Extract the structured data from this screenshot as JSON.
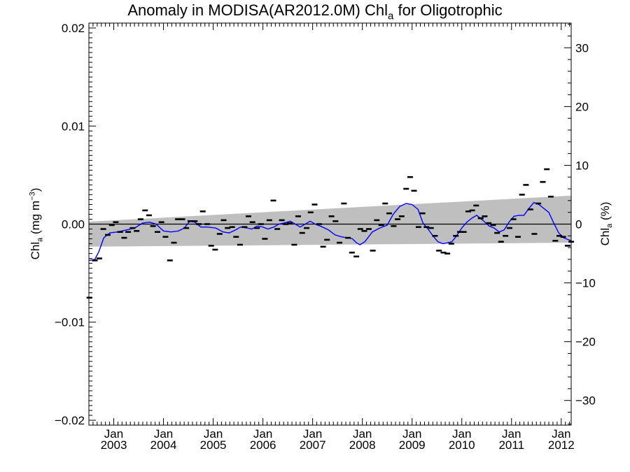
{
  "title": {
    "main": "Anomaly in MODISA(AR2012.0M) Chl",
    "sub": "a",
    "tail": " for Oligotrophic"
  },
  "ylabel_left": {
    "main": "Chl",
    "sub": "a",
    "mid": " (mg m",
    "sup": "−3",
    "end": ")"
  },
  "ylabel_right": {
    "main": "Chl",
    "sub": "a",
    "end": " (%)"
  },
  "colors": {
    "band": "#bfbfbf",
    "line": "#0000ff",
    "points": "#000000",
    "zero": "#000000"
  },
  "chart_data": {
    "type": "line",
    "xlim": [
      2002.5,
      2012.2
    ],
    "ylim_left": [
      -0.0205,
      0.0205
    ],
    "ylim_right": [
      -34.2,
      34.2
    ],
    "yticks_left": [
      {
        "v": -0.02,
        "label": "−0.02"
      },
      {
        "v": -0.01,
        "label": "−0.01"
      },
      {
        "v": 0.0,
        "label": "0.00"
      },
      {
        "v": 0.01,
        "label": "0.01"
      },
      {
        "v": 0.02,
        "label": "0.02"
      }
    ],
    "yticks_right": [
      {
        "v": -30,
        "label": "−30"
      },
      {
        "v": -20,
        "label": "−20"
      },
      {
        "v": -10,
        "label": "−10"
      },
      {
        "v": 0,
        "label": "0"
      },
      {
        "v": 10,
        "label": "10"
      },
      {
        "v": 20,
        "label": "20"
      },
      {
        "v": 30,
        "label": "30"
      }
    ],
    "xticks": [
      {
        "x": 2003.0,
        "month": "Jan",
        "year": "2003"
      },
      {
        "x": 2004.0,
        "month": "Jan",
        "year": "2004"
      },
      {
        "x": 2005.0,
        "month": "Jan",
        "year": "2005"
      },
      {
        "x": 2006.0,
        "month": "Jan",
        "year": "2006"
      },
      {
        "x": 2007.0,
        "month": "Jan",
        "year": "2007"
      },
      {
        "x": 2008.0,
        "month": "Jan",
        "year": "2008"
      },
      {
        "x": 2009.0,
        "month": "Jan",
        "year": "2009"
      },
      {
        "x": 2010.0,
        "month": "Jan",
        "year": "2010"
      },
      {
        "x": 2011.0,
        "month": "Jan",
        "year": "2011"
      },
      {
        "x": 2012.0,
        "month": "Jan",
        "year": "2012"
      }
    ],
    "band": {
      "upper": [
        [
          2002.5,
          0.00025
        ],
        [
          2012.2,
          0.0029
        ]
      ],
      "lower": [
        [
          2002.5,
          -0.0023
        ],
        [
          2012.2,
          -0.0019
        ]
      ]
    },
    "smooth_line": [
      [
        2002.5,
        -0.0037
      ],
      [
        2002.62,
        -0.0036
      ],
      [
        2002.7,
        -0.0028
      ],
      [
        2002.8,
        -0.0014
      ],
      [
        2002.92,
        -0.0009
      ],
      [
        2003.08,
        -0.0008
      ],
      [
        2003.25,
        -0.0006
      ],
      [
        2003.42,
        -0.0004
      ],
      [
        2003.58,
        0.0001
      ],
      [
        2003.72,
        0.0002
      ],
      [
        2003.85,
        0.0
      ],
      [
        2004.0,
        -0.0007
      ],
      [
        2004.15,
        -0.0008
      ],
      [
        2004.3,
        -0.0007
      ],
      [
        2004.42,
        -0.0004
      ],
      [
        2004.53,
        0.0003
      ],
      [
        2004.63,
        0.0002
      ],
      [
        2004.75,
        -0.0003
      ],
      [
        2004.88,
        -0.0003
      ],
      [
        2005.05,
        -0.0004
      ],
      [
        2005.2,
        -0.0008
      ],
      [
        2005.32,
        -0.0009
      ],
      [
        2005.45,
        -0.0006
      ],
      [
        2005.55,
        -0.0003
      ],
      [
        2005.68,
        -0.0004
      ],
      [
        2005.78,
        -0.0005
      ],
      [
        2005.88,
        -0.0002
      ],
      [
        2006.0,
        -0.0003
      ],
      [
        2006.1,
        -0.0005
      ],
      [
        2006.22,
        -0.0003
      ],
      [
        2006.32,
        0.0
      ],
      [
        2006.42,
        0.0001
      ],
      [
        2006.55,
        0.0003
      ],
      [
        2006.65,
        0.0
      ],
      [
        2006.75,
        -0.0003
      ],
      [
        2006.85,
        0.0
      ],
      [
        2006.95,
        0.0003
      ],
      [
        2007.05,
        0.0
      ],
      [
        2007.2,
        -0.0003
      ],
      [
        2007.32,
        -0.0006
      ],
      [
        2007.45,
        -0.0011
      ],
      [
        2007.58,
        -0.0013
      ],
      [
        2007.7,
        -0.0014
      ],
      [
        2007.8,
        -0.0015
      ],
      [
        2007.88,
        -0.0019
      ],
      [
        2007.95,
        -0.0021
      ],
      [
        2008.05,
        -0.0018
      ],
      [
        2008.2,
        -0.0008
      ],
      [
        2008.35,
        -0.0004
      ],
      [
        2008.5,
        -0.0001
      ],
      [
        2008.62,
        0.001
      ],
      [
        2008.75,
        0.0018
      ],
      [
        2008.88,
        0.0021
      ],
      [
        2009.0,
        0.002
      ],
      [
        2009.12,
        0.0015
      ],
      [
        2009.22,
        0.0001
      ],
      [
        2009.32,
        -0.0005
      ],
      [
        2009.42,
        -0.0012
      ],
      [
        2009.52,
        -0.0018
      ],
      [
        2009.62,
        -0.002
      ],
      [
        2009.72,
        -0.0019
      ],
      [
        2009.8,
        -0.0018
      ],
      [
        2009.88,
        -0.0013
      ],
      [
        2010.0,
        -0.0004
      ],
      [
        2010.1,
        0.0002
      ],
      [
        2010.2,
        0.0006
      ],
      [
        2010.3,
        0.0009
      ],
      [
        2010.42,
        0.0004
      ],
      [
        2010.55,
        -0.0002
      ],
      [
        2010.65,
        -0.0004
      ],
      [
        2010.75,
        -0.0008
      ],
      [
        2010.85,
        -0.0006
      ],
      [
        2010.95,
        0.0002
      ],
      [
        2011.05,
        0.0008
      ],
      [
        2011.15,
        0.0009
      ],
      [
        2011.25,
        0.0009
      ],
      [
        2011.35,
        0.0016
      ],
      [
        2011.45,
        0.0022
      ],
      [
        2011.55,
        0.002
      ],
      [
        2011.65,
        0.0016
      ],
      [
        2011.75,
        0.0012
      ],
      [
        2011.85,
        0.0001
      ],
      [
        2011.95,
        -0.0009
      ],
      [
        2012.05,
        -0.0014
      ],
      [
        2012.15,
        -0.0016
      ],
      [
        2012.2,
        -0.0017
      ]
    ],
    "monthly_points": [
      [
        2002.51,
        -0.0075
      ],
      [
        2002.62,
        -0.0037
      ],
      [
        2002.71,
        -0.0035
      ],
      [
        2002.79,
        -0.0005
      ],
      [
        2002.88,
        -0.0011
      ],
      [
        2002.96,
        -0.0001
      ],
      [
        2003.04,
        0.0002
      ],
      [
        2003.13,
        -0.0008
      ],
      [
        2003.21,
        -0.0014
      ],
      [
        2003.29,
        -0.0008
      ],
      [
        2003.38,
        -0.0004
      ],
      [
        2003.46,
        -0.0007
      ],
      [
        2003.54,
        0.0005
      ],
      [
        2003.63,
        0.0014
      ],
      [
        2003.71,
        0.0009
      ],
      [
        2003.79,
        -0.0002
      ],
      [
        2003.88,
        -0.0008
      ],
      [
        2003.96,
        0.0002
      ],
      [
        2004.04,
        -0.0013
      ],
      [
        2004.13,
        -0.0037
      ],
      [
        2004.21,
        -0.0019
      ],
      [
        2004.29,
        0.0005
      ],
      [
        2004.38,
        0.0005
      ],
      [
        2004.46,
        -0.0004
      ],
      [
        2004.54,
        0.0003
      ],
      [
        2004.63,
        0.0003
      ],
      [
        2004.71,
        0.0
      ],
      [
        2004.79,
        0.0013
      ],
      [
        2004.88,
        -0.0
      ],
      [
        2004.96,
        -0.0022
      ],
      [
        2005.04,
        -0.0026
      ],
      [
        2005.13,
        -0.001
      ],
      [
        2005.21,
        0.0004
      ],
      [
        2005.29,
        -0.0004
      ],
      [
        2005.38,
        -0.0003
      ],
      [
        2005.46,
        -0.0013
      ],
      [
        2005.54,
        -0.0021
      ],
      [
        2005.63,
        -0.0003
      ],
      [
        2005.71,
        0.0008
      ],
      [
        2005.79,
        0.0002
      ],
      [
        2005.88,
        -0.0004
      ],
      [
        2005.96,
        0.0
      ],
      [
        2006.04,
        -0.0015
      ],
      [
        2006.13,
        0.0004
      ],
      [
        2006.21,
        0.0024
      ],
      [
        2006.29,
        -0.0005
      ],
      [
        2006.38,
        0.0004
      ],
      [
        2006.46,
        0.0
      ],
      [
        2006.54,
        0.0001
      ],
      [
        2006.63,
        -0.0021
      ],
      [
        2006.71,
        0.0008
      ],
      [
        2006.79,
        -0.0009
      ],
      [
        2006.88,
        -0.0004
      ],
      [
        2006.96,
        0.0012
      ],
      [
        2007.04,
        0.002
      ],
      [
        2007.13,
        0.0
      ],
      [
        2007.21,
        -0.0023
      ],
      [
        2007.29,
        -0.0016
      ],
      [
        2007.38,
        0.0008
      ],
      [
        2007.46,
        0.0003
      ],
      [
        2007.54,
        -0.0019
      ],
      [
        2007.63,
        0.0021
      ],
      [
        2007.71,
        -0.0014
      ],
      [
        2007.79,
        -0.0029
      ],
      [
        2007.88,
        -0.0033
      ],
      [
        2007.96,
        -0.0005
      ],
      [
        2008.04,
        -0.0007
      ],
      [
        2008.13,
        -0.0005
      ],
      [
        2008.21,
        -0.0027
      ],
      [
        2008.29,
        0.0004
      ],
      [
        2008.38,
        -0.0001
      ],
      [
        2008.46,
        0.0021
      ],
      [
        2008.54,
        0.0011
      ],
      [
        2008.63,
        -0.0002
      ],
      [
        2008.71,
        0.0005
      ],
      [
        2008.79,
        0.0008
      ],
      [
        2008.88,
        0.0036
      ],
      [
        2008.96,
        0.0048
      ],
      [
        2009.04,
        0.0034
      ],
      [
        2009.13,
        -0.0003
      ],
      [
        2009.21,
        0.0011
      ],
      [
        2009.29,
        -0.0003
      ],
      [
        2009.38,
        -0.0004
      ],
      [
        2009.46,
        -0.0012
      ],
      [
        2009.54,
        -0.0027
      ],
      [
        2009.63,
        -0.0029
      ],
      [
        2009.71,
        -0.003
      ],
      [
        2009.79,
        -0.002
      ],
      [
        2009.88,
        -0.0012
      ],
      [
        2009.96,
        -0.0008
      ],
      [
        2010.04,
        -0.0008
      ],
      [
        2010.13,
        0.0013
      ],
      [
        2010.21,
        0.0014
      ],
      [
        2010.29,
        0.0019
      ],
      [
        2010.38,
        0.0006
      ],
      [
        2010.46,
        0.0008
      ],
      [
        2010.54,
        0.0001
      ],
      [
        2010.63,
        -0.0001
      ],
      [
        2010.71,
        -0.0009
      ],
      [
        2010.79,
        -0.0018
      ],
      [
        2010.88,
        -0.0012
      ],
      [
        2010.96,
        -0.0004
      ],
      [
        2011.04,
        0.0005
      ],
      [
        2011.13,
        -0.0013
      ],
      [
        2011.21,
        0.003
      ],
      [
        2011.29,
        0.004
      ],
      [
        2011.38,
        0.0015
      ],
      [
        2011.46,
        -0.001
      ],
      [
        2011.54,
        0.0021
      ],
      [
        2011.63,
        0.0043
      ],
      [
        2011.71,
        0.0056
      ],
      [
        2011.79,
        0.0028
      ],
      [
        2011.88,
        -0.0017
      ],
      [
        2011.96,
        -0.0012
      ],
      [
        2012.04,
        -0.0013
      ],
      [
        2012.13,
        -0.0022
      ],
      [
        2012.2,
        -0.0018
      ]
    ]
  }
}
